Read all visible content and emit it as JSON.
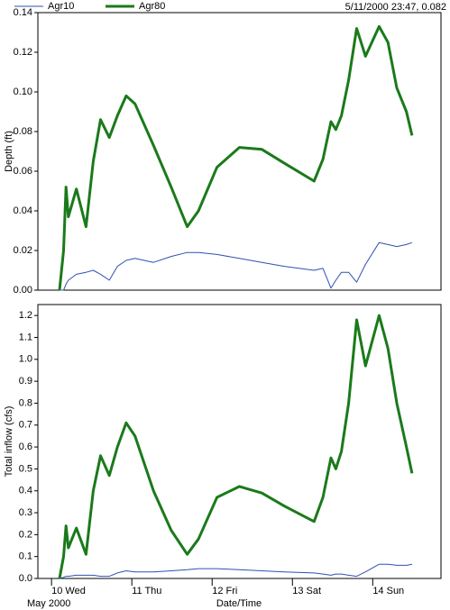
{
  "readout": "5/11/2000 23:47, 0.082",
  "chart_data": [
    {
      "type": "line",
      "y_label": "Depth (ft)",
      "x": [
        10.1,
        10.15,
        10.18,
        10.21,
        10.31,
        10.43,
        10.52,
        10.61,
        10.72,
        10.82,
        10.93,
        11.04,
        11.27,
        11.49,
        11.69,
        11.83,
        12.06,
        12.34,
        12.62,
        12.9,
        13.27,
        13.38,
        13.48,
        13.54,
        13.61,
        13.7,
        13.8,
        13.91,
        14.08,
        14.19,
        14.3,
        14.42,
        14.49
      ],
      "series": [
        {
          "name": "Agr10",
          "color": "#3050b0",
          "line_width": 1,
          "values": [
            0,
            0,
            0.003,
            0.005,
            0.008,
            0.009,
            0.01,
            0.008,
            0.005,
            0.012,
            0.015,
            0.016,
            0.014,
            0.017,
            0.019,
            0.019,
            0.018,
            0.016,
            0.014,
            0.012,
            0.01,
            0.011,
            0.001,
            0.005,
            0.009,
            0.009,
            0.004,
            0.013,
            0.024,
            0.023,
            0.022,
            0.023,
            0.024
          ]
        },
        {
          "name": "Agr80",
          "color": "#1a7a1a",
          "line_width": 3,
          "values": [
            0,
            0.02,
            0.052,
            0.037,
            0.051,
            0.032,
            0.065,
            0.086,
            0.077,
            0.088,
            0.098,
            0.094,
            0.073,
            0.052,
            0.032,
            0.04,
            0.062,
            0.072,
            0.071,
            0.064,
            0.055,
            0.066,
            0.085,
            0.081,
            0.088,
            0.106,
            0.132,
            0.118,
            0.133,
            0.125,
            0.102,
            0.09,
            0.078
          ]
        }
      ],
      "xlim": [
        9.83,
        14.85
      ],
      "ylim": [
        0,
        0.14
      ],
      "yticks": [
        {
          "value": 0,
          "label": "0.00"
        },
        0.02,
        0.04,
        0.06,
        0.08,
        {
          "value": 0.1,
          "label": "0.10"
        },
        0.12,
        0.14
      ]
    },
    {
      "type": "line",
      "y_label": "Total inflow (cfs)",
      "x_label": "Date/Time",
      "x_caption": "May 2000",
      "x": [
        10.1,
        10.15,
        10.18,
        10.21,
        10.31,
        10.43,
        10.52,
        10.61,
        10.72,
        10.82,
        10.93,
        11.04,
        11.27,
        11.49,
        11.69,
        11.83,
        12.06,
        12.34,
        12.62,
        12.9,
        13.27,
        13.38,
        13.48,
        13.54,
        13.61,
        13.7,
        13.8,
        13.91,
        14.08,
        14.19,
        14.3,
        14.42,
        14.49
      ],
      "series": [
        {
          "name": "Agr10",
          "color": "#3050b0",
          "line_width": 1,
          "values": [
            0,
            0.005,
            0.01,
            0.01,
            0.015,
            0.015,
            0.015,
            0.01,
            0.01,
            0.025,
            0.035,
            0.03,
            0.03,
            0.035,
            0.04,
            0.045,
            0.045,
            0.04,
            0.035,
            0.03,
            0.025,
            0.02,
            0.015,
            0.02,
            0.02,
            0.015,
            0.01,
            0.03,
            0.065,
            0.065,
            0.06,
            0.06,
            0.065
          ]
        },
        {
          "name": "Agr80",
          "color": "#1a7a1a",
          "line_width": 3,
          "values": [
            0,
            0.1,
            0.24,
            0.14,
            0.23,
            0.11,
            0.4,
            0.56,
            0.47,
            0.6,
            0.71,
            0.65,
            0.4,
            0.22,
            0.11,
            0.18,
            0.37,
            0.42,
            0.39,
            0.33,
            0.26,
            0.37,
            0.55,
            0.5,
            0.58,
            0.8,
            1.18,
            0.97,
            1.2,
            1.05,
            0.8,
            0.6,
            0.48
          ]
        }
      ],
      "xlim": [
        9.83,
        14.85
      ],
      "ylim": [
        0,
        1.25
      ],
      "xticks": [
        {
          "value": 10,
          "label": "10 Wed"
        },
        {
          "value": 11,
          "label": "11 Thu"
        },
        {
          "value": 12,
          "label": "12 Fri"
        },
        {
          "value": 13,
          "label": "13 Sat"
        },
        {
          "value": 14,
          "label": "14 Sun"
        }
      ],
      "yticks": [
        {
          "value": 0,
          "label": "0.0"
        },
        0.1,
        0.2,
        0.3,
        0.4,
        0.5,
        0.6,
        0.7,
        0.8,
        0.9,
        {
          "value": 1,
          "label": "1.0"
        },
        1.1,
        1.2
      ]
    }
  ]
}
